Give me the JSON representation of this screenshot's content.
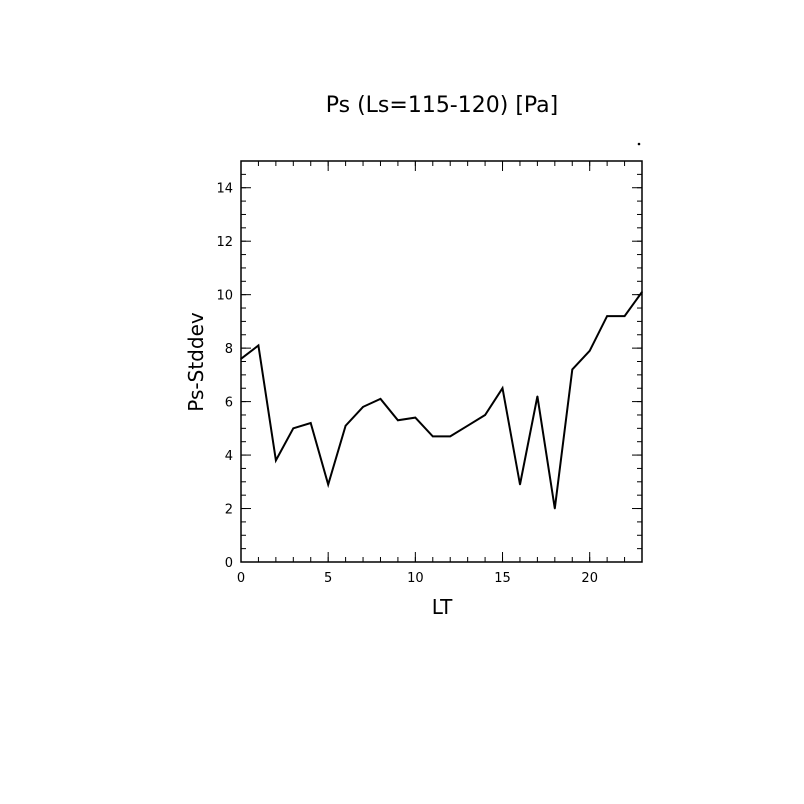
{
  "chart_data": {
    "type": "line",
    "title": "Ps (Ls=115-120) [Pa]",
    "xlabel": "LT",
    "ylabel": "Ps-Stddev",
    "xlim": [
      0,
      23
    ],
    "ylim": [
      0,
      15
    ],
    "x_ticks": [
      0,
      5,
      10,
      15,
      20
    ],
    "x_tick_labels": [
      "0",
      "5",
      "10",
      "15",
      "20"
    ],
    "x_minor_step": 1,
    "y_ticks": [
      0,
      2,
      4,
      6,
      8,
      10,
      12,
      14
    ],
    "y_tick_labels": [
      "0",
      "2",
      "4",
      "6",
      "8",
      "10",
      "12",
      "14"
    ],
    "y_minor_step": 0.5,
    "grid": false,
    "series": [
      {
        "x": [
          0,
          1,
          2,
          3,
          4,
          5,
          6,
          7,
          8,
          9,
          10,
          11,
          12,
          13,
          14,
          15,
          16,
          17,
          18,
          19,
          20,
          21,
          22,
          23
        ],
        "values": [
          7.6,
          8.1,
          3.8,
          5.0,
          5.2,
          2.9,
          5.1,
          5.8,
          6.1,
          5.3,
          5.4,
          4.7,
          4.7,
          5.1,
          5.5,
          6.5,
          2.9,
          6.2,
          2.0,
          7.2,
          7.9,
          9.2,
          9.2,
          10.1
        ]
      }
    ]
  }
}
